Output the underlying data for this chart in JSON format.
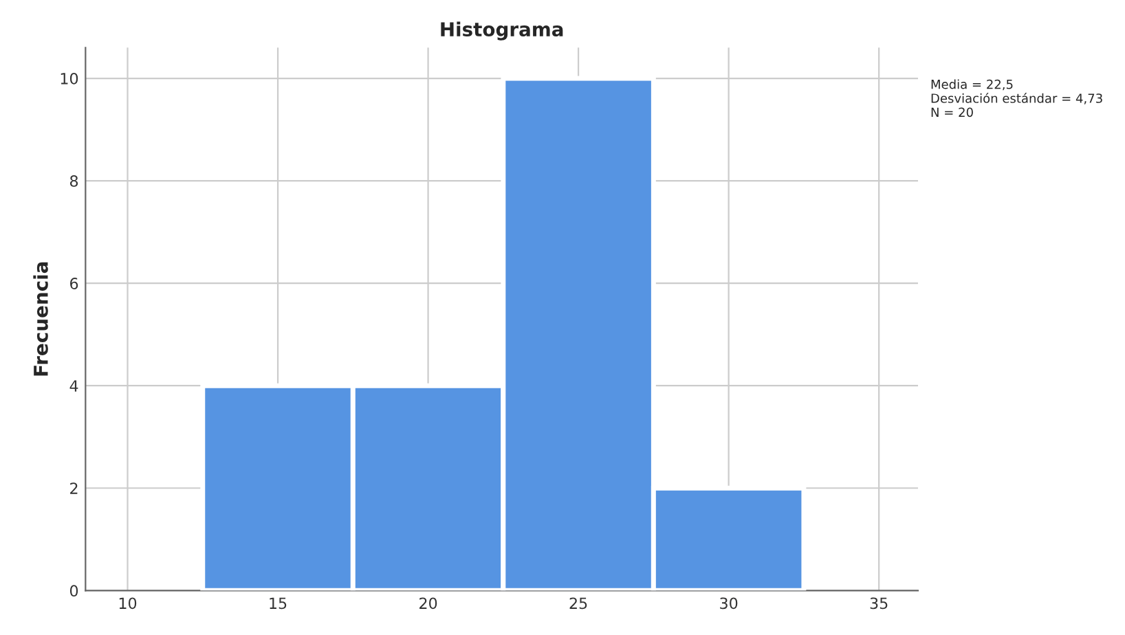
{
  "chart_data": {
    "type": "histogram",
    "title": "Histograma",
    "ylabel": "Frecuencia",
    "bins": [
      12.5,
      17.5,
      22.5,
      27.5,
      32.5
    ],
    "values": [
      4,
      4,
      10,
      2
    ],
    "color": "#5694e2",
    "xlim": [
      8.6,
      36.3
    ],
    "xticks": [
      10,
      15,
      20,
      25,
      30,
      35
    ],
    "ylim": [
      0,
      10.6
    ],
    "yticks": [
      0,
      2,
      4,
      6,
      8,
      10
    ],
    "grid": true,
    "annotations": [
      "Media = 22,5",
      "Desviación estándar = 4,73",
      "N = 20"
    ]
  }
}
